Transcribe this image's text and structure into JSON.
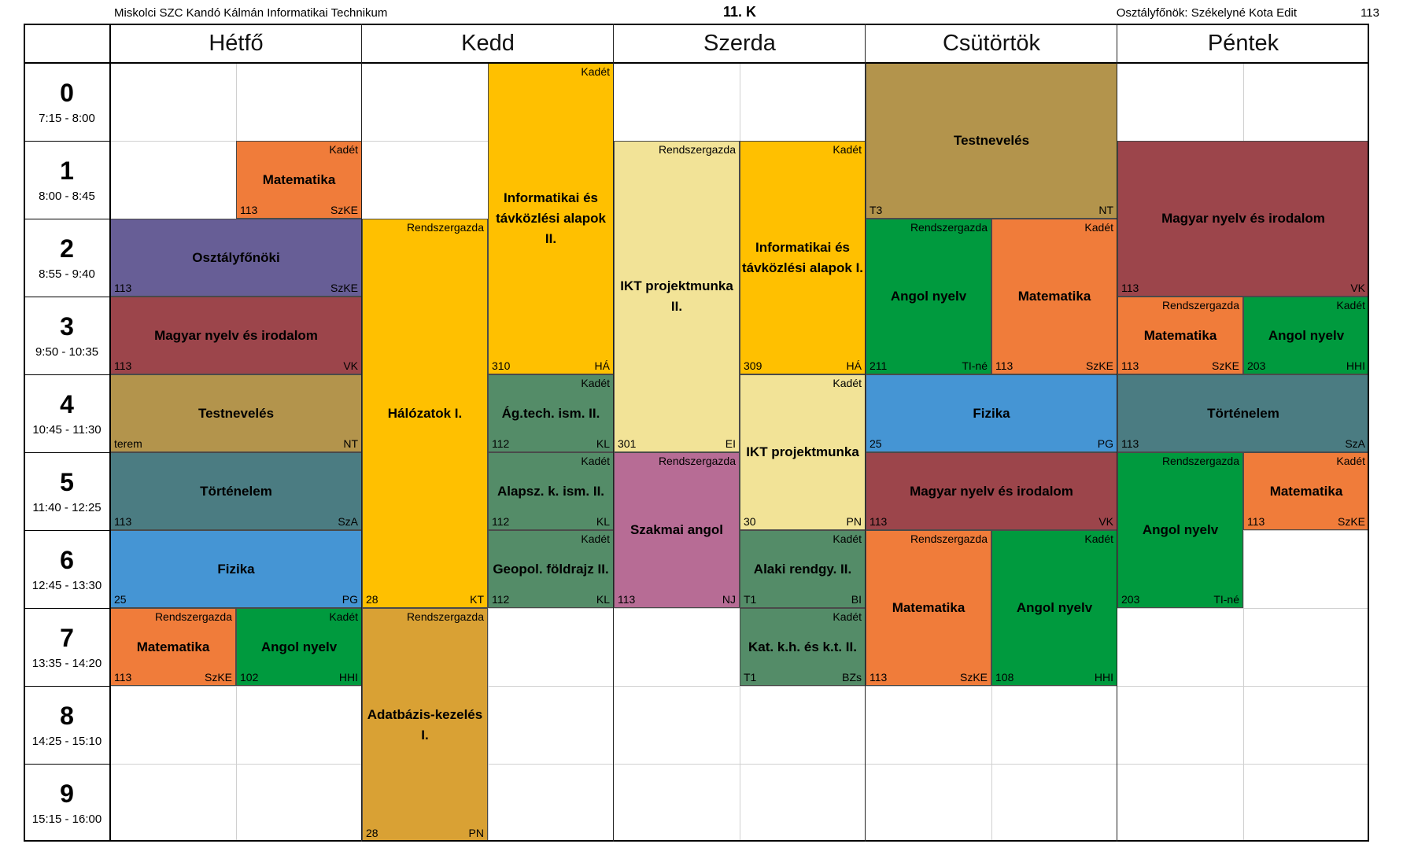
{
  "header": {
    "school": "Miskolci SZC Kandó Kálmán Informatikai Technikum",
    "class_name": "11. K",
    "head_teacher": "Osztályfőnök: Székelyné Kota Edit",
    "room": "113"
  },
  "days": [
    "Hétfő",
    "Kedd",
    "Szerda",
    "Csütörtök",
    "Péntek"
  ],
  "periods": [
    {
      "num": "0",
      "time": "7:15 - 8:00"
    },
    {
      "num": "1",
      "time": "8:00 - 8:45"
    },
    {
      "num": "2",
      "time": "8:55 - 9:40"
    },
    {
      "num": "3",
      "time": "9:50 - 10:35"
    },
    {
      "num": "4",
      "time": "10:45 - 11:30"
    },
    {
      "num": "5",
      "time": "11:40 - 12:25"
    },
    {
      "num": "6",
      "time": "12:45 - 13:30"
    },
    {
      "num": "7",
      "time": "13:35 - 14:20"
    },
    {
      "num": "8",
      "time": "14:25 - 15:10"
    },
    {
      "num": "9",
      "time": "15:15 - 16:00"
    }
  ],
  "colors": {
    "orange": "#F07C3A",
    "purple": "#675E96",
    "maroon": "#9C454B",
    "tan": "#B3944C",
    "teal": "#4B7C82",
    "blue": "#4595D4",
    "green": "#009A3E",
    "amber": "#FFC000",
    "cream": "#F2E397",
    "sage": "#548C68",
    "mauve": "#B76C95",
    "gold": "#D9A134"
  },
  "lessons": [
    {
      "day": 0,
      "half": "R",
      "start": 1,
      "span": 1,
      "subject": "Matematika",
      "group": "Kadét",
      "room": "113",
      "teacher": "SzKE",
      "color": "#F07C3A"
    },
    {
      "day": 0,
      "half": "F",
      "start": 2,
      "span": 1,
      "subject": "Osztályfőnöki",
      "group": "",
      "room": "113",
      "teacher": "SzKE",
      "color": "#675E96"
    },
    {
      "day": 0,
      "half": "F",
      "start": 3,
      "span": 1,
      "subject": "Magyar nyelv és irodalom",
      "group": "",
      "room": "113",
      "teacher": "VK",
      "color": "#9C454B"
    },
    {
      "day": 0,
      "half": "F",
      "start": 4,
      "span": 1,
      "subject": "Testnevelés",
      "group": "",
      "room": "terem",
      "teacher": "NT",
      "color": "#B3944C"
    },
    {
      "day": 0,
      "half": "F",
      "start": 5,
      "span": 1,
      "subject": "Történelem",
      "group": "",
      "room": "113",
      "teacher": "SzA",
      "color": "#4B7C82"
    },
    {
      "day": 0,
      "half": "F",
      "start": 6,
      "span": 1,
      "subject": "Fizika",
      "group": "",
      "room": "25",
      "teacher": "PG",
      "color": "#4595D4"
    },
    {
      "day": 0,
      "half": "L",
      "start": 7,
      "span": 1,
      "subject": "Matematika",
      "group": "Rendszergazda",
      "room": "113",
      "teacher": "SzKE",
      "color": "#F07C3A"
    },
    {
      "day": 0,
      "half": "R",
      "start": 7,
      "span": 1,
      "subject": "Angol nyelv",
      "group": "Kadét",
      "room": "102",
      "teacher": "HHI",
      "color": "#009A3E"
    },
    {
      "day": 1,
      "half": "R",
      "start": 0,
      "span": 4,
      "subject": "Informatikai és távközlési alapok II.",
      "group": "Kadét",
      "room": "310",
      "teacher": "HÁ",
      "color": "#FFC000"
    },
    {
      "day": 1,
      "half": "L",
      "start": 2,
      "span": 5,
      "subject": "Hálózatok I.",
      "group": "Rendszergazda",
      "room": "28",
      "teacher": "KT",
      "color": "#FFC000"
    },
    {
      "day": 1,
      "half": "R",
      "start": 4,
      "span": 1,
      "subject": "Ág.tech. ism. II.",
      "group": "Kadét",
      "room": "112",
      "teacher": "KL",
      "color": "#548C68"
    },
    {
      "day": 1,
      "half": "R",
      "start": 5,
      "span": 1,
      "subject": "Alapsz. k. ism. II.",
      "group": "Kadét",
      "room": "112",
      "teacher": "KL",
      "color": "#548C68"
    },
    {
      "day": 1,
      "half": "R",
      "start": 6,
      "span": 1,
      "subject": "Geopol. földrajz II.",
      "group": "Kadét",
      "room": "112",
      "teacher": "KL",
      "color": "#548C68"
    },
    {
      "day": 1,
      "half": "L",
      "start": 7,
      "span": 3,
      "subject": "Adatbázis-kezelés I.",
      "group": "Rendszergazda",
      "room": "28",
      "teacher": "PN",
      "color": "#D9A134"
    },
    {
      "day": 2,
      "half": "L",
      "start": 1,
      "span": 4,
      "subject": "IKT projektmunka II.",
      "group": "Rendszergazda",
      "room": "301",
      "teacher": "EI",
      "color": "#F2E397"
    },
    {
      "day": 2,
      "half": "R",
      "start": 1,
      "span": 3,
      "subject": "Informatikai és távközlési alapok I.",
      "group": "Kadét",
      "room": "309",
      "teacher": "HÁ",
      "color": "#FFC000"
    },
    {
      "day": 2,
      "half": "R",
      "start": 4,
      "span": 2,
      "subject": "IKT projektmunka",
      "group": "Kadét",
      "room": "30",
      "teacher": "PN",
      "color": "#F2E397"
    },
    {
      "day": 2,
      "half": "L",
      "start": 5,
      "span": 2,
      "subject": "Szakmai angol",
      "group": "Rendszergazda",
      "room": "113",
      "teacher": "NJ",
      "color": "#B76C95"
    },
    {
      "day": 2,
      "half": "R",
      "start": 6,
      "span": 1,
      "subject": "Alaki rendgy. II.",
      "group": "Kadét",
      "room": "T1",
      "teacher": "BI",
      "color": "#548C68"
    },
    {
      "day": 2,
      "half": "R",
      "start": 7,
      "span": 1,
      "subject": "Kat. k.h. és k.t. II.",
      "group": "Kadét",
      "room": "T1",
      "teacher": "BZs",
      "color": "#548C68"
    },
    {
      "day": 3,
      "half": "F",
      "start": 0,
      "span": 2,
      "subject": "Testnevelés",
      "group": "",
      "room": "T3",
      "teacher": "NT",
      "color": "#B3944C"
    },
    {
      "day": 3,
      "half": "L",
      "start": 2,
      "span": 2,
      "subject": "Angol nyelv",
      "group": "Rendszergazda",
      "room": "211",
      "teacher": "TI-né",
      "color": "#009A3E"
    },
    {
      "day": 3,
      "half": "R",
      "start": 2,
      "span": 2,
      "subject": "Matematika",
      "group": "Kadét",
      "room": "113",
      "teacher": "SzKE",
      "color": "#F07C3A"
    },
    {
      "day": 3,
      "half": "F",
      "start": 4,
      "span": 1,
      "subject": "Fizika",
      "group": "",
      "room": "25",
      "teacher": "PG",
      "color": "#4595D4"
    },
    {
      "day": 3,
      "half": "F",
      "start": 5,
      "span": 1,
      "subject": "Magyar nyelv és irodalom",
      "group": "",
      "room": "113",
      "teacher": "VK",
      "color": "#9C454B"
    },
    {
      "day": 3,
      "half": "L",
      "start": 6,
      "span": 2,
      "subject": "Matematika",
      "group": "Rendszergazda",
      "room": "113",
      "teacher": "SzKE",
      "color": "#F07C3A"
    },
    {
      "day": 3,
      "half": "R",
      "start": 6,
      "span": 2,
      "subject": "Angol nyelv",
      "group": "Kadét",
      "room": "108",
      "teacher": "HHI",
      "color": "#009A3E"
    },
    {
      "day": 4,
      "half": "F",
      "start": 1,
      "span": 2,
      "subject": "Magyar nyelv és irodalom",
      "group": "",
      "room": "113",
      "teacher": "VK",
      "color": "#9C454B"
    },
    {
      "day": 4,
      "half": "L",
      "start": 3,
      "span": 1,
      "subject": "Matematika",
      "group": "Rendszergazda",
      "room": "113",
      "teacher": "SzKE",
      "color": "#F07C3A"
    },
    {
      "day": 4,
      "half": "R",
      "start": 3,
      "span": 1,
      "subject": "Angol nyelv",
      "group": "Kadét",
      "room": "203",
      "teacher": "HHI",
      "color": "#009A3E"
    },
    {
      "day": 4,
      "half": "F",
      "start": 4,
      "span": 1,
      "subject": "Történelem",
      "group": "",
      "room": "113",
      "teacher": "SzA",
      "color": "#4B7C82"
    },
    {
      "day": 4,
      "half": "L",
      "start": 5,
      "span": 2,
      "subject": "Angol nyelv",
      "group": "Rendszergazda",
      "room": "203",
      "teacher": "TI-né",
      "color": "#009A3E"
    },
    {
      "day": 4,
      "half": "R",
      "start": 5,
      "span": 1,
      "subject": "Matematika",
      "group": "Kadét",
      "room": "113",
      "teacher": "SzKE",
      "color": "#F07C3A"
    }
  ]
}
